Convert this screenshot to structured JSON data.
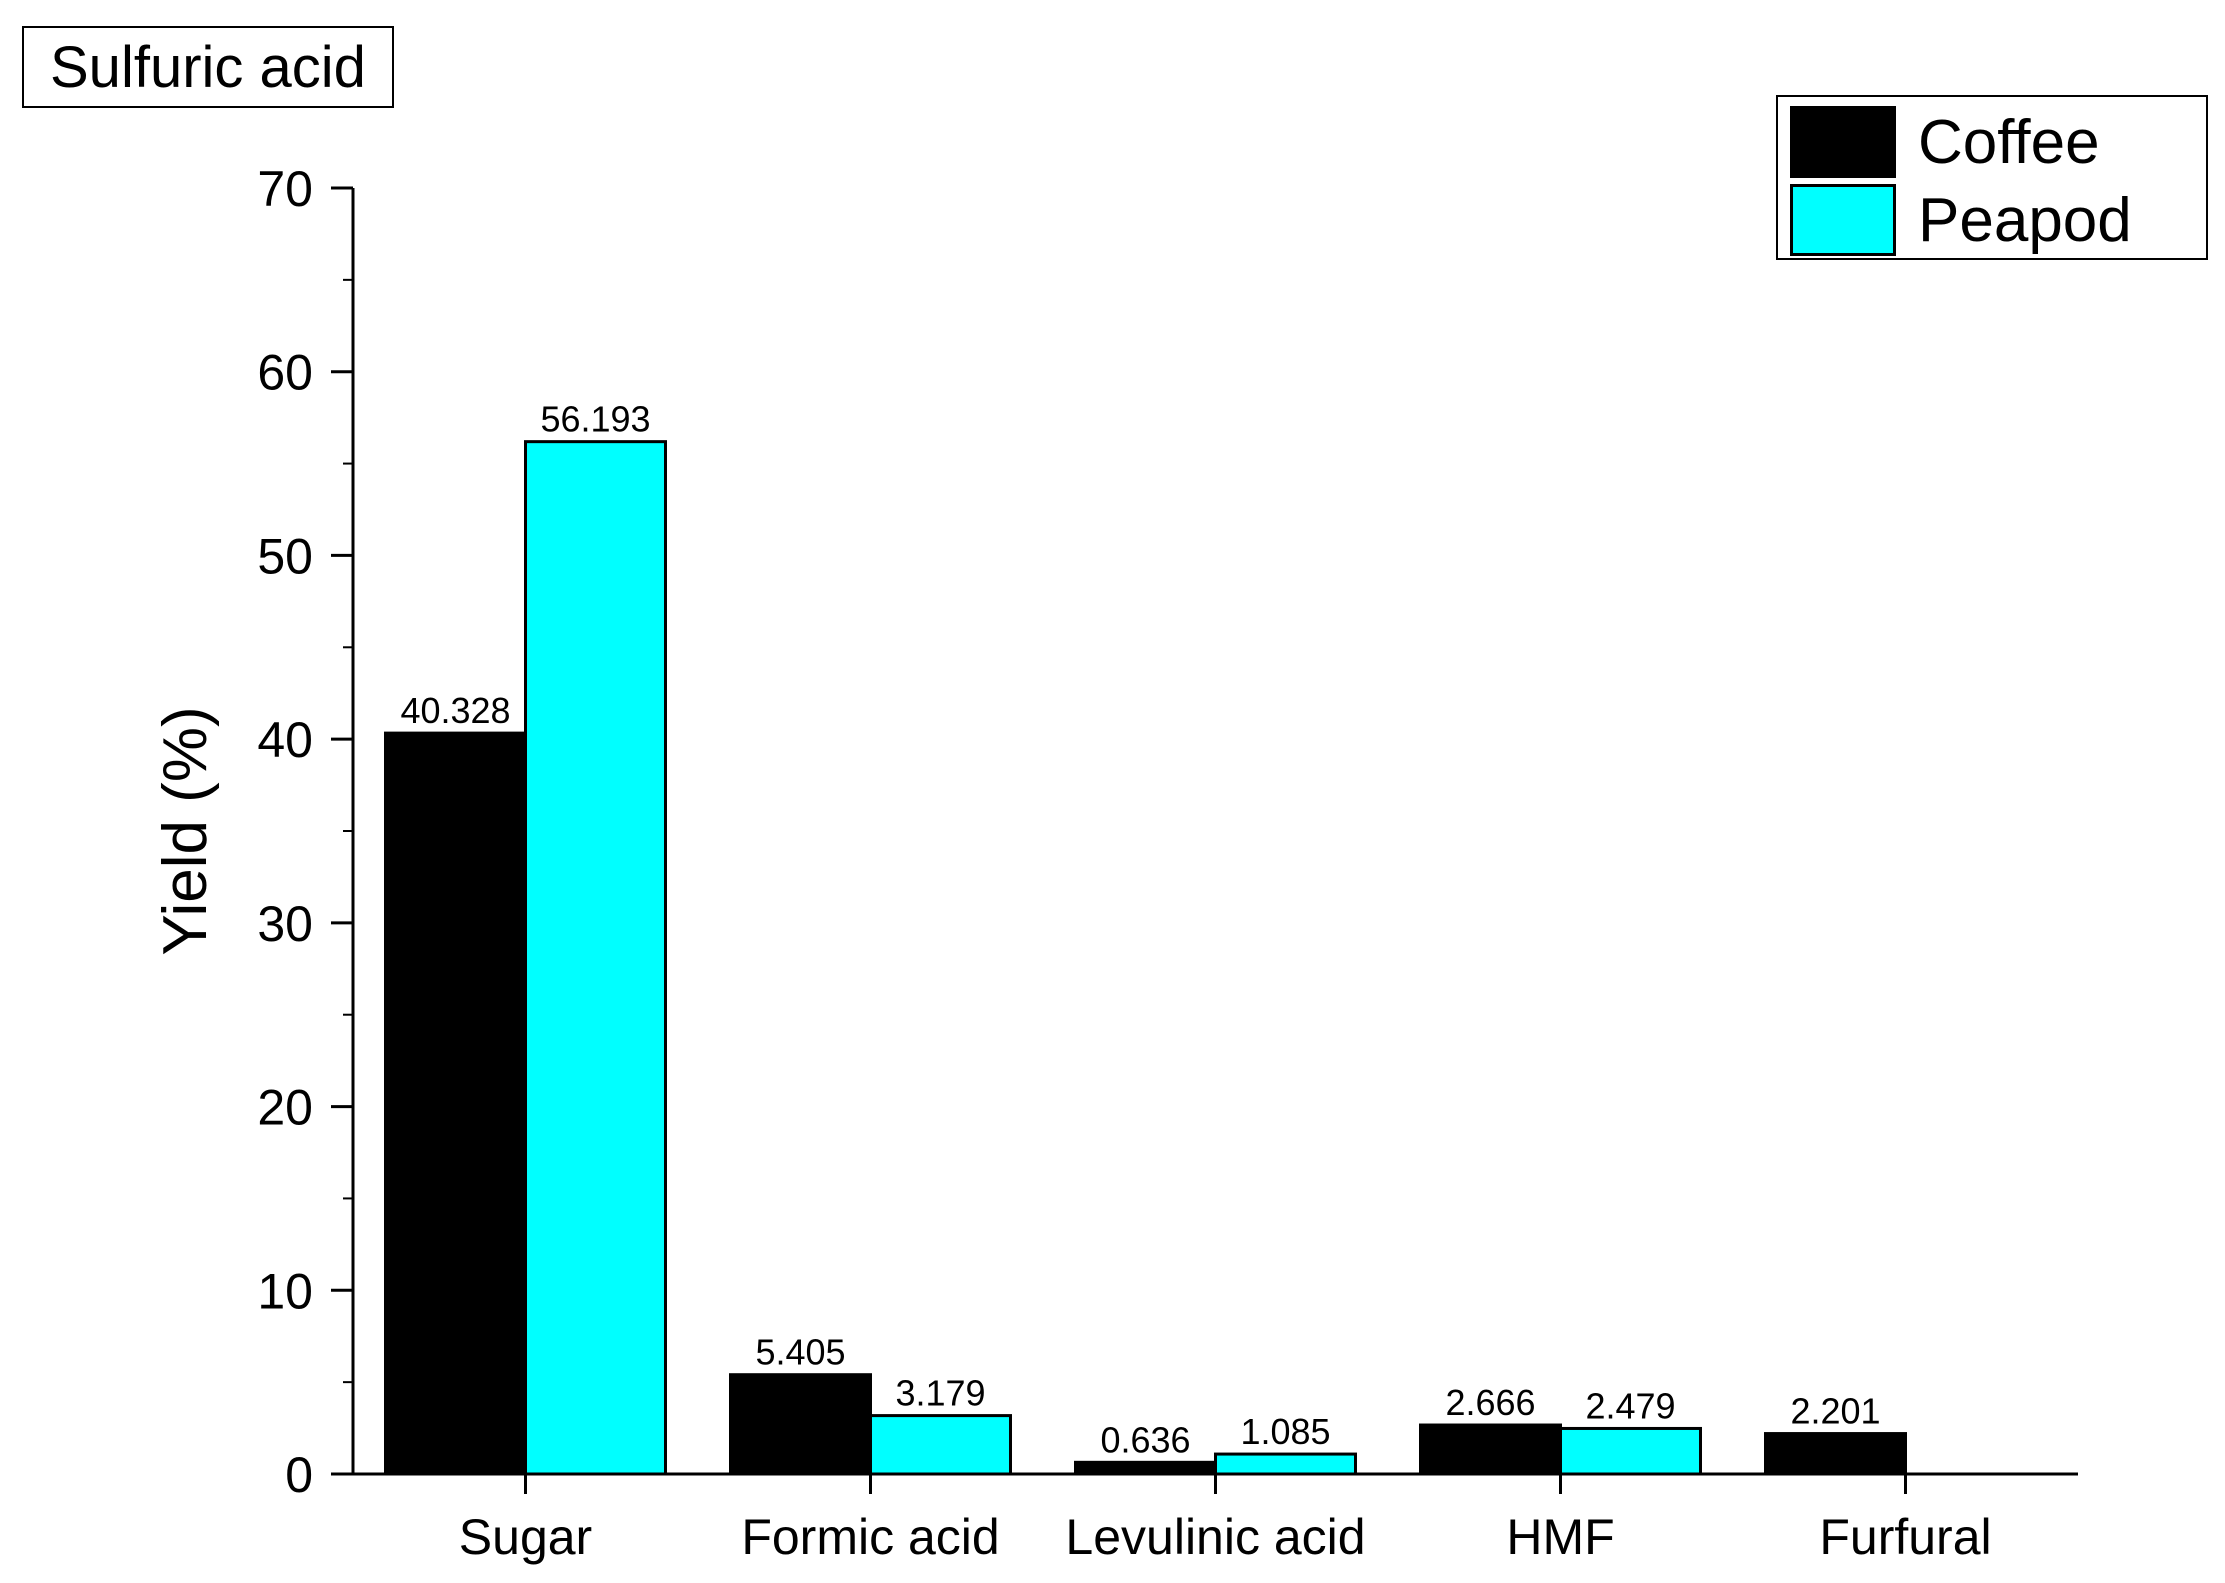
{
  "chart_data": {
    "type": "bar",
    "title": "Sulfuric acid",
    "ylabel": "Yield (%)",
    "xlabel": "",
    "categories": [
      "Sugar",
      "Formic acid",
      "Levulinic acid",
      "HMF",
      "Furfural"
    ],
    "series": [
      {
        "name": "Coffee",
        "color": "#000000",
        "values": [
          40.328,
          5.405,
          0.636,
          2.666,
          2.201
        ],
        "labels": [
          "40.328",
          "5.405",
          "0.636",
          "2.666",
          "2.201"
        ]
      },
      {
        "name": "Peapod",
        "color": "#00ffff",
        "values": [
          56.193,
          3.179,
          1.085,
          2.479,
          null
        ],
        "labels": [
          "56.193",
          "3.179",
          "1.085",
          "2.479",
          null
        ]
      }
    ],
    "ylim": [
      0,
      70
    ],
    "yticks": [
      0,
      10,
      20,
      30,
      40,
      50,
      60,
      70
    ],
    "ytick_labels": [
      "0",
      "10",
      "20",
      "30",
      "40",
      "50",
      "60",
      "70"
    ],
    "minor_ytick_step": 5,
    "grid": false,
    "legend_position": "top-right"
  }
}
